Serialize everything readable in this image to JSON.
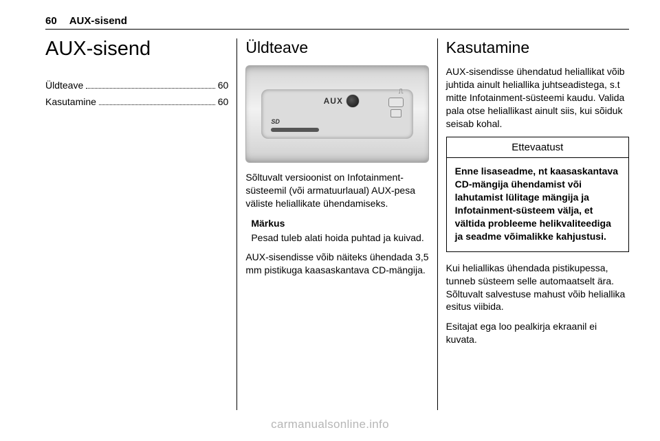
{
  "page_number": "60",
  "header_title": "AUX-sisend",
  "col1": {
    "heading": "AUX-sisend",
    "toc": [
      {
        "label": "Üldteave",
        "page": "60"
      },
      {
        "label": "Kasutamine",
        "page": "60"
      }
    ]
  },
  "col2": {
    "heading": "Üldteave",
    "aux_panel": {
      "label": "AUX",
      "sd_label": "SD"
    },
    "para1": "Sõltuvalt versioonist on Infotainment-süsteemil (või armatuurlaual) AUX-pesa väliste heliallikate ühendamiseks.",
    "note_title": "Märkus",
    "note_body": "Pesad tuleb alati hoida puhtad ja kuivad.",
    "para2": "AUX-sisendisse võib näiteks ühendada 3,5 mm pistikuga kaasaskantava CD-mängija."
  },
  "col3": {
    "heading": "Kasutamine",
    "para1": "AUX-sisendisse ühendatud heliallikat võib juhtida ainult heliallika juhtseadistega, s.t mitte Infotainment-süsteemi kaudu. Valida pala otse heliallikast ainult siis, kui sõiduk seisab kohal.",
    "caution_title": "Ettevaatust",
    "caution_body": "Enne lisaseadme, nt kaasaskantava CD-mängija ühendamist või lahutamist lülitage mängija ja Infotainment-süsteem välja, et vältida probleeme helikvaliteediga ja seadme võimalikke kahjustusi.",
    "para2": "Kui heliallikas ühendada pistikupessa, tunneb süsteem selle automaatselt ära. Sõltuvalt salvestuse mahust võib heliallika esitus viibida.",
    "para3": "Esitajat ega loo pealkirja ekraanil ei kuvata."
  },
  "watermark": "carmanualsonline.info"
}
